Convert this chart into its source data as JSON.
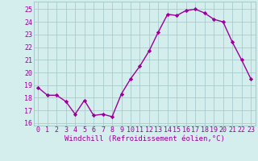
{
  "x": [
    0,
    1,
    2,
    3,
    4,
    5,
    6,
    7,
    8,
    9,
    10,
    11,
    12,
    13,
    14,
    15,
    16,
    17,
    18,
    19,
    20,
    21,
    22,
    23
  ],
  "y": [
    18.8,
    18.2,
    18.2,
    17.7,
    16.7,
    17.8,
    16.6,
    16.7,
    16.5,
    18.3,
    19.5,
    20.5,
    21.7,
    23.2,
    24.6,
    24.5,
    24.9,
    25.0,
    24.7,
    24.2,
    24.0,
    22.4,
    21.0,
    19.5
  ],
  "line_color": "#990099",
  "marker": "D",
  "markersize": 2.2,
  "linewidth": 1.0,
  "bg_color": "#d4eeee",
  "grid_color": "#aacccc",
  "xlabel": "Windchill (Refroidissement éolien,°C)",
  "xlabel_fontsize": 6.5,
  "ylabel_ticks": [
    16,
    17,
    18,
    19,
    20,
    21,
    22,
    23,
    24,
    25
  ],
  "xlim": [
    -0.5,
    23.5
  ],
  "ylim": [
    15.8,
    25.6
  ],
  "tick_fontsize": 6.0
}
